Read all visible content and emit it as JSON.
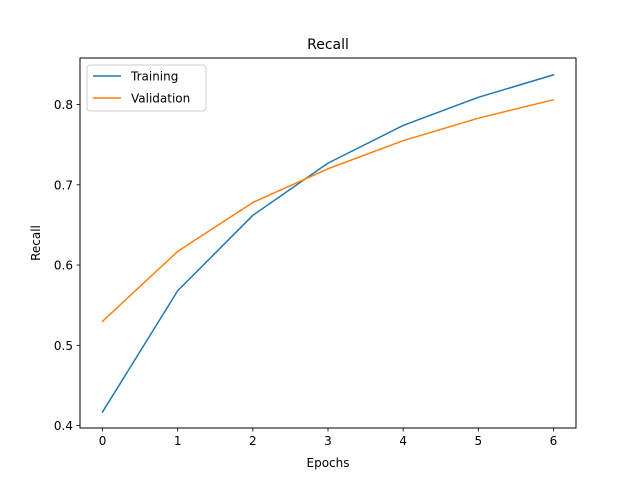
{
  "chart_data": {
    "type": "line",
    "title": "Recall",
    "xlabel": "Epochs",
    "ylabel": "Recall",
    "x": [
      0,
      1,
      2,
      3,
      4,
      5,
      6
    ],
    "xlim": [
      -0.3,
      6.3
    ],
    "ylim": [
      0.397,
      0.858
    ],
    "xticks": [
      "0",
      "1",
      "2",
      "3",
      "4",
      "5",
      "6"
    ],
    "yticks": [
      "0.4",
      "0.5",
      "0.6",
      "0.7",
      "0.8"
    ],
    "grid": false,
    "legend_position": "top-left",
    "series": [
      {
        "name": "Training",
        "color": "#1f77b4",
        "values": [
          0.417,
          0.568,
          0.662,
          0.727,
          0.774,
          0.809,
          0.837
        ]
      },
      {
        "name": "Validation",
        "color": "#ff7f0e",
        "values": [
          0.53,
          0.617,
          0.678,
          0.72,
          0.755,
          0.783,
          0.806
        ]
      }
    ]
  }
}
